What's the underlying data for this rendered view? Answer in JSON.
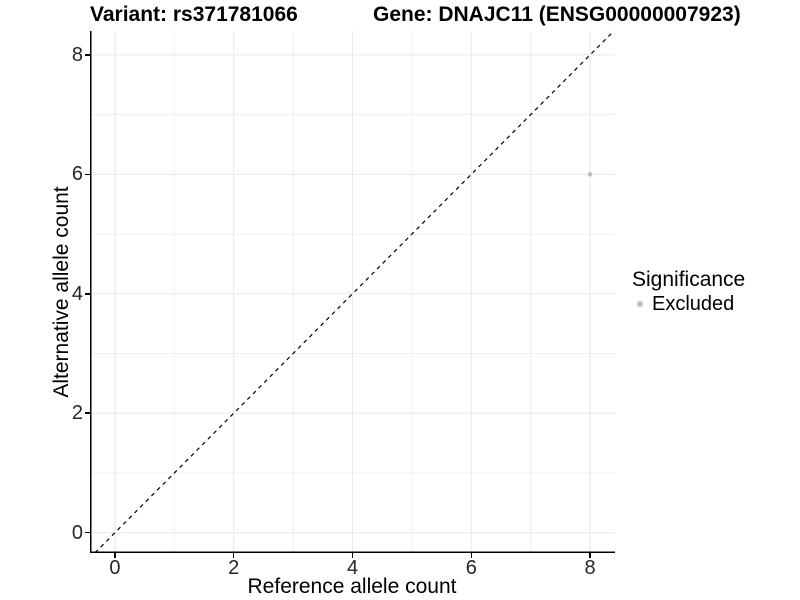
{
  "titles": {
    "variant": "Variant: rs371781066",
    "gene": "Gene: DNAJC11 (ENSG00000007923)"
  },
  "axes": {
    "x": {
      "label": "Reference allele count",
      "tick_labels": [
        "0",
        "2",
        "4",
        "6",
        "8"
      ]
    },
    "y": {
      "label": "Alternative allele count",
      "tick_labels": [
        "0",
        "2",
        "4",
        "6",
        "8"
      ]
    }
  },
  "legend": {
    "title": "Significance",
    "items": [
      {
        "label": "Excluded",
        "color": "#bdbdbd"
      }
    ]
  },
  "colors": {
    "background": "#ffffff",
    "axis_line": "#000000",
    "tick_text": "#262626",
    "grid_major": "#e8e8e8",
    "grid_minor": "#f0f0f0",
    "point": "#bdbdbd",
    "identity_line": "#000000"
  },
  "chart_data": {
    "type": "scatter",
    "title_left": "Variant: rs371781066",
    "title_right": "Gene: DNAJC11 (ENSG00000007923)",
    "xlabel": "Reference allele count",
    "ylabel": "Alternative allele count",
    "xlim": [
      -0.42,
      8.42
    ],
    "ylim": [
      -0.34,
      8.4
    ],
    "xticks": [
      0,
      2,
      4,
      6,
      8
    ],
    "yticks": [
      0,
      2,
      4,
      6,
      8
    ],
    "grid_minor_x": [
      1,
      3,
      5,
      7
    ],
    "grid_minor_y": [
      1,
      3,
      5,
      7
    ],
    "grid": "on",
    "legend_position": "right",
    "series": [
      {
        "name": "Excluded",
        "color": "#bdbdbd",
        "points": [
          {
            "x": 8,
            "y": 6
          }
        ]
      }
    ],
    "reference_line": {
      "type": "identity y=x",
      "style": "dashed",
      "color": "#000000",
      "dash": [
        4,
        4
      ]
    }
  }
}
